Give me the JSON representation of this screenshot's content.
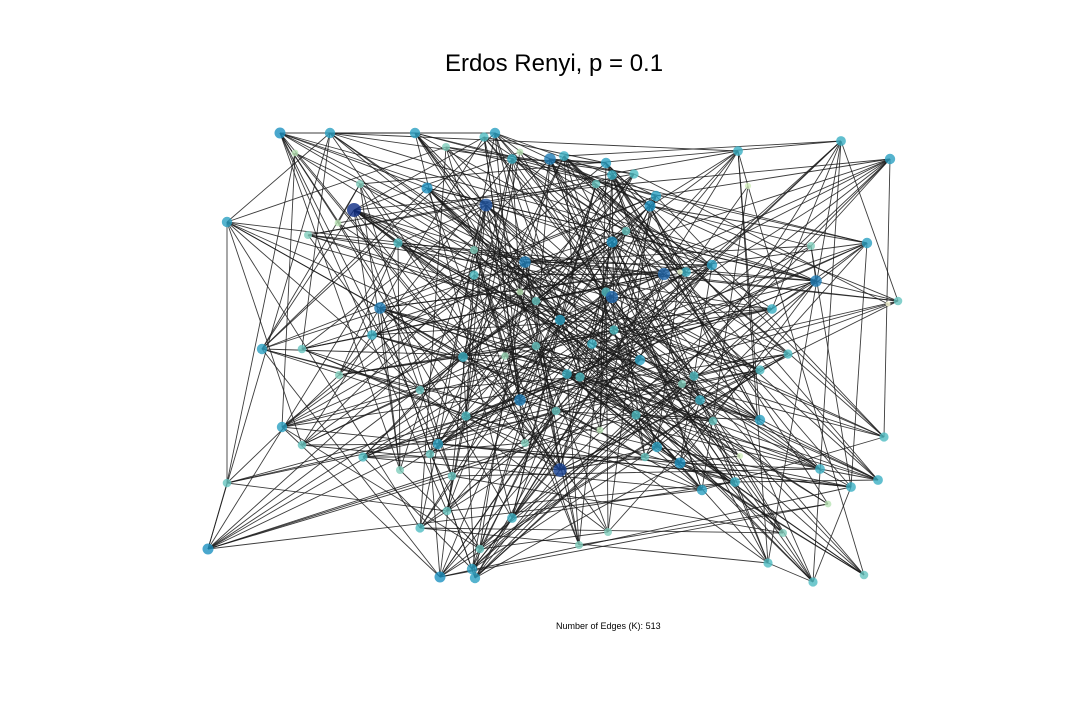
{
  "title": "Erdos Renyi, p = 0.1",
  "footer": {
    "label": "Number of Edges (K):",
    "value": "513"
  },
  "graph": {
    "model": "Erdos Renyi",
    "p": 0.1,
    "edge_count": 513,
    "node_count": 110,
    "seed": 7,
    "edge_color": "#1a1a1a",
    "node_colormap": [
      "#ffffd9",
      "#c7e9b4",
      "#7fcdbb",
      "#41b6c4",
      "#1d91c0",
      "#225ea8",
      "#0c2c84"
    ]
  }
}
